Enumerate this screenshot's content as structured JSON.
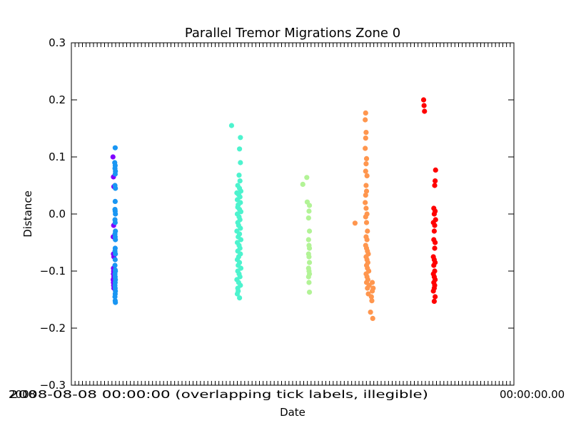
{
  "chart_data": {
    "type": "scatter",
    "title": "Parallel Tremor Migrations Zone 0",
    "xlabel": "Date",
    "ylabel": "Distance",
    "ylim": [
      -0.3,
      0.3
    ],
    "yticks": [
      "0.3",
      "0.2",
      "0.1",
      "0.0",
      "−0.1",
      "−0.2",
      "−0.3"
    ],
    "ytick_values": [
      0.3,
      0.2,
      0.1,
      0.0,
      -0.1,
      -0.2,
      -0.3
    ],
    "xlim": [
      0,
      100
    ],
    "xtick_text_garbled": "2008-08-08 00:00:00 (overlapping tick labels, illegible)",
    "xtick_leftmost": "2008",
    "xtick_rightmost": "00:00:00.00",
    "grid": false,
    "series": [
      {
        "color": "#8000ff",
        "x": [
          9.4,
          9.5,
          9.6,
          9.55,
          9.45,
          9.5,
          9.6,
          9.5,
          9.55,
          9.5,
          9.6,
          9.45,
          9.5,
          9.55,
          9.6
        ],
        "y": [
          0.1,
          0.065,
          0.048,
          -0.02,
          -0.04,
          -0.07,
          -0.075,
          -0.095,
          -0.1,
          -0.105,
          -0.11,
          -0.115,
          -0.12,
          -0.125,
          -0.13
        ]
      },
      {
        "color": "#1996f3",
        "x": [
          9.9,
          9.8,
          9.9,
          9.85,
          9.95,
          9.9,
          9.85,
          9.95,
          9.9,
          9.85,
          9.9,
          9.95,
          9.85,
          9.9,
          9.95,
          9.85,
          9.9,
          9.95,
          9.9,
          9.85,
          9.95,
          9.9,
          9.85,
          9.9,
          9.95,
          9.85,
          9.9,
          9.95,
          9.9,
          9.85,
          9.9,
          9.95,
          9.9,
          9.85,
          9.9,
          9.95
        ],
        "y": [
          0.116,
          0.09,
          0.085,
          0.08,
          0.075,
          0.07,
          0.05,
          0.045,
          0.022,
          0.008,
          0.005,
          0.0,
          -0.01,
          -0.015,
          -0.03,
          -0.035,
          -0.04,
          -0.045,
          -0.06,
          -0.065,
          -0.07,
          -0.08,
          -0.09,
          -0.098,
          -0.1,
          -0.105,
          -0.11,
          -0.115,
          -0.12,
          -0.125,
          -0.13,
          -0.135,
          -0.14,
          -0.145,
          -0.152,
          -0.155
        ]
      },
      {
        "color": "#4df3ce",
        "x": [
          36.2,
          38.2,
          38.0,
          38.2,
          37.9,
          38.1,
          37.6,
          38.0,
          38.3,
          37.4,
          37.8,
          38.1,
          37.5,
          38.2,
          37.7,
          37.6,
          38.0,
          38.3,
          37.5,
          37.9,
          38.1,
          37.6,
          37.8,
          38.2,
          37.4,
          38.0,
          37.7,
          38.3,
          37.5,
          37.9,
          38.1,
          37.6,
          38.2,
          37.8,
          37.5,
          38.0,
          37.7,
          38.3,
          37.6,
          37.9,
          38.1,
          37.4,
          37.8,
          38.2,
          37.6,
          37.7,
          37.5,
          38.0
        ],
        "y": [
          0.155,
          0.134,
          0.114,
          0.09,
          0.068,
          0.058,
          0.05,
          0.045,
          0.04,
          0.037,
          0.034,
          0.03,
          0.025,
          0.02,
          0.016,
          0.012,
          0.008,
          0.004,
          0.0,
          -0.005,
          -0.01,
          -0.015,
          -0.02,
          -0.025,
          -0.03,
          -0.035,
          -0.04,
          -0.045,
          -0.05,
          -0.055,
          -0.06,
          -0.065,
          -0.07,
          -0.075,
          -0.08,
          -0.085,
          -0.09,
          -0.095,
          -0.1,
          -0.105,
          -0.11,
          -0.115,
          -0.12,
          -0.125,
          -0.13,
          -0.135,
          -0.14,
          -0.147
        ]
      },
      {
        "color": "#b2f396",
        "x": [
          52.3,
          53.2,
          53.3,
          53.8,
          53.7,
          53.6,
          53.8,
          53.6,
          53.7,
          53.8,
          53.6,
          53.7,
          53.8,
          53.6,
          53.7,
          53.8,
          53.6,
          53.7,
          53.8
        ],
        "y": [
          0.052,
          0.064,
          0.021,
          0.015,
          0.005,
          -0.007,
          -0.03,
          -0.045,
          -0.055,
          -0.06,
          -0.07,
          -0.075,
          -0.085,
          -0.095,
          -0.1,
          -0.105,
          -0.11,
          -0.12,
          -0.137
        ]
      },
      {
        "color": "#ff964e",
        "x": [
          64.1,
          66.5,
          66.4,
          66.6,
          66.5,
          66.4,
          66.7,
          66.6,
          66.5,
          66.8,
          66.6,
          66.7,
          66.5,
          66.4,
          66.6,
          66.8,
          66.5,
          66.7,
          66.9,
          66.6,
          66.8,
          66.5,
          66.7,
          66.9,
          67.1,
          66.6,
          66.8,
          67.0,
          66.7,
          66.9,
          67.2,
          66.6,
          66.8,
          67.0,
          66.7,
          67.3,
          66.9,
          67.1,
          68.0,
          68.2,
          68.0,
          67.8,
          67.9,
          67.6,
          68.1
        ],
        "y": [
          -0.016,
          0.177,
          0.165,
          0.143,
          0.133,
          0.115,
          0.097,
          0.088,
          0.075,
          0.067,
          0.05,
          0.04,
          0.033,
          0.02,
          0.01,
          0.0,
          -0.005,
          -0.015,
          -0.03,
          -0.04,
          -0.045,
          -0.055,
          -0.06,
          -0.065,
          -0.07,
          -0.075,
          -0.08,
          -0.085,
          -0.09,
          -0.095,
          -0.1,
          -0.105,
          -0.11,
          -0.115,
          -0.12,
          -0.125,
          -0.13,
          -0.14,
          -0.12,
          -0.13,
          -0.135,
          -0.145,
          -0.152,
          -0.172,
          -0.183
        ]
      },
      {
        "color": "#ff0000",
        "x": [
          79.6,
          79.7,
          79.8,
          82.3,
          82.2,
          82.1,
          81.9,
          82.2,
          82.0,
          82.3,
          81.8,
          82.1,
          82.0,
          81.9,
          82.2,
          82.1,
          81.8,
          82.0,
          82.2,
          81.9,
          82.1,
          81.8,
          82.0,
          82.2,
          81.9,
          82.1,
          82.0,
          81.8,
          82.2,
          82.0
        ],
        "y": [
          0.2,
          0.19,
          0.18,
          0.077,
          0.058,
          0.05,
          0.01,
          0.005,
          0.0,
          -0.01,
          -0.015,
          -0.02,
          -0.03,
          -0.045,
          -0.05,
          -0.06,
          -0.075,
          -0.08,
          -0.085,
          -0.09,
          -0.1,
          -0.105,
          -0.11,
          -0.115,
          -0.12,
          -0.125,
          -0.13,
          -0.135,
          -0.145,
          -0.153
        ]
      }
    ]
  }
}
